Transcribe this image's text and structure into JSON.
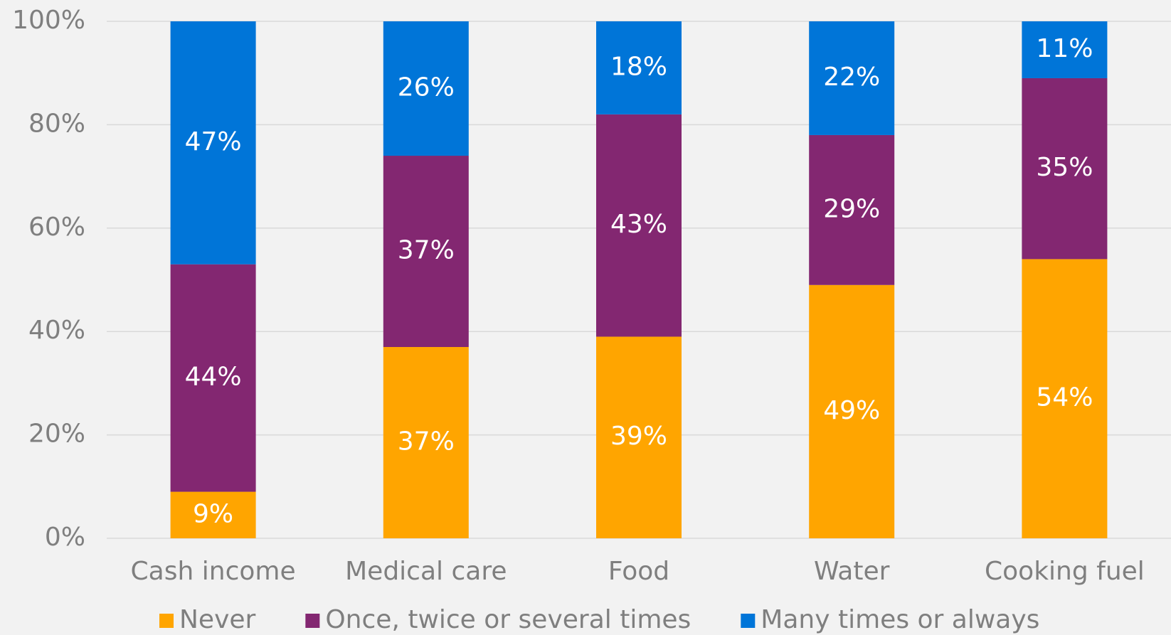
{
  "chart_data": {
    "type": "stacked_bar",
    "categories": [
      "Cash income",
      "Medical care",
      "Food",
      "Water",
      "Cooking fuel"
    ],
    "series": [
      {
        "name": "Never",
        "color": "#ffa500",
        "values": [
          9,
          37,
          39,
          49,
          54
        ],
        "value_labels": [
          "9%",
          "37%",
          "39%",
          "49%",
          "54%"
        ]
      },
      {
        "name": "Once, twice or several times",
        "color": "#832771",
        "values": [
          44,
          37,
          43,
          29,
          35
        ],
        "value_labels": [
          "44%",
          "37%",
          "43%",
          "29%",
          "35%"
        ]
      },
      {
        "name": "Many times or always",
        "color": "#0075d8",
        "values": [
          47,
          26,
          18,
          22,
          11
        ],
        "value_labels": [
          "47%",
          "26%",
          "18%",
          "22%",
          "11%"
        ]
      }
    ],
    "ylim": [
      0,
      100
    ],
    "yticks": [
      {
        "value": 0,
        "label": "0%"
      },
      {
        "value": 20,
        "label": "20%"
      },
      {
        "value": 40,
        "label": "40%"
      },
      {
        "value": 60,
        "label": "60%"
      },
      {
        "value": 80,
        "label": "80%"
      },
      {
        "value": 100,
        "label": "100%"
      }
    ],
    "grid": true,
    "legend": "bottom"
  }
}
